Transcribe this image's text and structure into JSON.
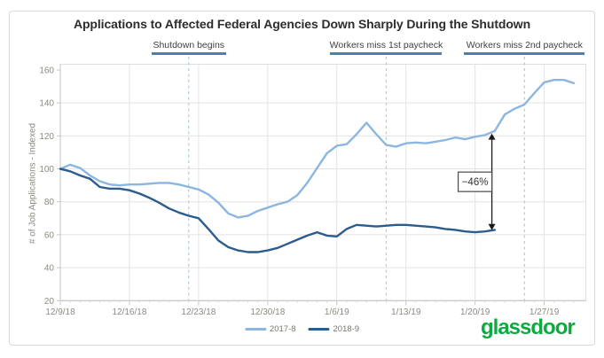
{
  "branding": {
    "logo_text": "glassdoor",
    "color": "#0caa41"
  },
  "chart_data": {
    "type": "line",
    "title": "Applications to Affected Federal Agencies Down Sharply During the Shutdown",
    "xlabel": "",
    "ylabel": "# of Job Applications - Indexed",
    "ylim": [
      20,
      160
    ],
    "ytick_step": 20,
    "ytick_labels": [
      "20",
      "40",
      "60",
      "80",
      "100",
      "120",
      "140",
      "160"
    ],
    "grid": true,
    "legend_position": "bottom-center",
    "x_dates": [
      "12/9/18",
      "12/10/18",
      "12/11/18",
      "12/12/18",
      "12/13/18",
      "12/14/18",
      "12/15/18",
      "12/16/18",
      "12/17/18",
      "12/18/18",
      "12/19/18",
      "12/20/18",
      "12/21/18",
      "12/22/18",
      "12/23/18",
      "12/24/18",
      "12/25/18",
      "12/26/18",
      "12/27/18",
      "12/28/18",
      "12/29/18",
      "12/30/18",
      "12/31/18",
      "1/1/19",
      "1/2/19",
      "1/3/19",
      "1/4/19",
      "1/5/19",
      "1/6/19",
      "1/7/19",
      "1/8/19",
      "1/9/19",
      "1/10/19",
      "1/11/19",
      "1/12/19",
      "1/13/19",
      "1/14/19",
      "1/15/19",
      "1/16/19",
      "1/17/19",
      "1/18/19",
      "1/19/19",
      "1/20/19",
      "1/21/19",
      "1/22/19",
      "1/23/19",
      "1/24/19",
      "1/25/19",
      "1/26/19",
      "1/27/19",
      "1/28/19",
      "1/29/19",
      "1/30/19"
    ],
    "xtick_labels": [
      "12/9/18",
      "12/16/18",
      "12/23/18",
      "12/30/18",
      "1/6/19",
      "1/13/19",
      "1/20/19",
      "1/27/19"
    ],
    "xtick_days": [
      0,
      7,
      14,
      21,
      28,
      35,
      42,
      49
    ],
    "series": [
      {
        "name": "2017-8",
        "color": "#8cb6e0",
        "values": [
          100,
          102.5,
          100.5,
          96,
          92.5,
          90.5,
          90,
          90.5,
          90.5,
          91,
          91.5,
          91.5,
          90.5,
          89,
          87.5,
          84.5,
          79.5,
          73,
          70.5,
          71.5,
          74.5,
          76.5,
          78.5,
          80,
          84,
          91.5,
          100.5,
          109.5,
          114,
          115,
          121,
          128,
          121,
          114.5,
          113.5,
          115.5,
          116,
          115.5,
          116.5,
          117.5,
          119,
          118,
          119.5,
          120.5,
          123,
          133,
          136.5,
          139,
          146,
          152.5,
          154,
          154,
          152
        ]
      },
      {
        "name": "2018-9",
        "color": "#2b5c8c",
        "values": [
          100,
          98.5,
          96,
          94,
          89,
          88,
          88,
          87,
          85,
          82.5,
          79.5,
          76,
          73.5,
          71.5,
          70,
          63.5,
          56.5,
          52.5,
          50.5,
          49.5,
          49.5,
          50.5,
          52,
          54.5,
          57,
          59.5,
          61.5,
          59.5,
          59,
          63.5,
          66,
          65.5,
          65,
          65.5,
          66,
          66,
          65.5,
          65,
          64.5,
          63.5,
          63,
          62,
          61.5,
          62,
          63
        ]
      }
    ],
    "events": [
      {
        "label": "Shutdown begins",
        "date": "12/22/18",
        "day": 13,
        "underline_width": 84
      },
      {
        "label": "Workers miss 1st paycheck",
        "date": "1/11/19",
        "day": 33,
        "underline_width": 126
      },
      {
        "label": "Workers miss 2nd paycheck",
        "date": "1/25/19",
        "day": 47,
        "underline_width": 136
      }
    ],
    "annotation": {
      "label": "−46%",
      "day": 43.7,
      "from_value": 62.8,
      "to_value": 121.5
    },
    "colors": {
      "underline": "#4d7eb8",
      "event_dashed_line": "#b3cbdc",
      "gridline": "#e3e3e3",
      "axis": "#c4c4c4",
      "arrow": "#1a1a1a",
      "tick_text": "#8b8b83"
    }
  }
}
